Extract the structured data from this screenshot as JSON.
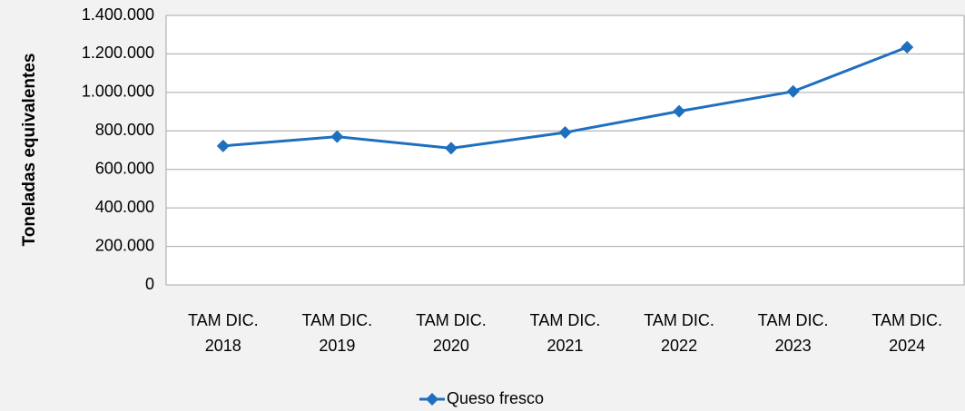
{
  "chart_data": {
    "type": "line",
    "y_label": "Toneladas equivalentes",
    "categories": [
      "TAM DIC. 2018",
      "TAM DIC. 2019",
      "TAM DIC. 2020",
      "TAM DIC. 2021",
      "TAM DIC. 2022",
      "TAM DIC. 2023",
      "TAM DIC. 2024"
    ],
    "series": [
      {
        "name": "Queso fresco",
        "color": "#1f6fbf",
        "values": [
          722000,
          770000,
          710000,
          792000,
          902000,
          1005000,
          1235000
        ]
      }
    ],
    "ylim": [
      0,
      1400000
    ],
    "yticks": [
      0,
      {
        "value": 200000,
        "label": "200.000"
      },
      {
        "value": 400000,
        "label": "400.000"
      },
      {
        "value": 600000,
        "label": "600.000"
      },
      {
        "value": 800000,
        "label": "800.000"
      },
      {
        "value": 1000000,
        "label": "1.000.000"
      },
      {
        "value": 1200000,
        "label": "1.200.000"
      },
      {
        "value": 1400000,
        "label": "1.400.000"
      }
    ],
    "grid": true,
    "legend": "bottom"
  }
}
